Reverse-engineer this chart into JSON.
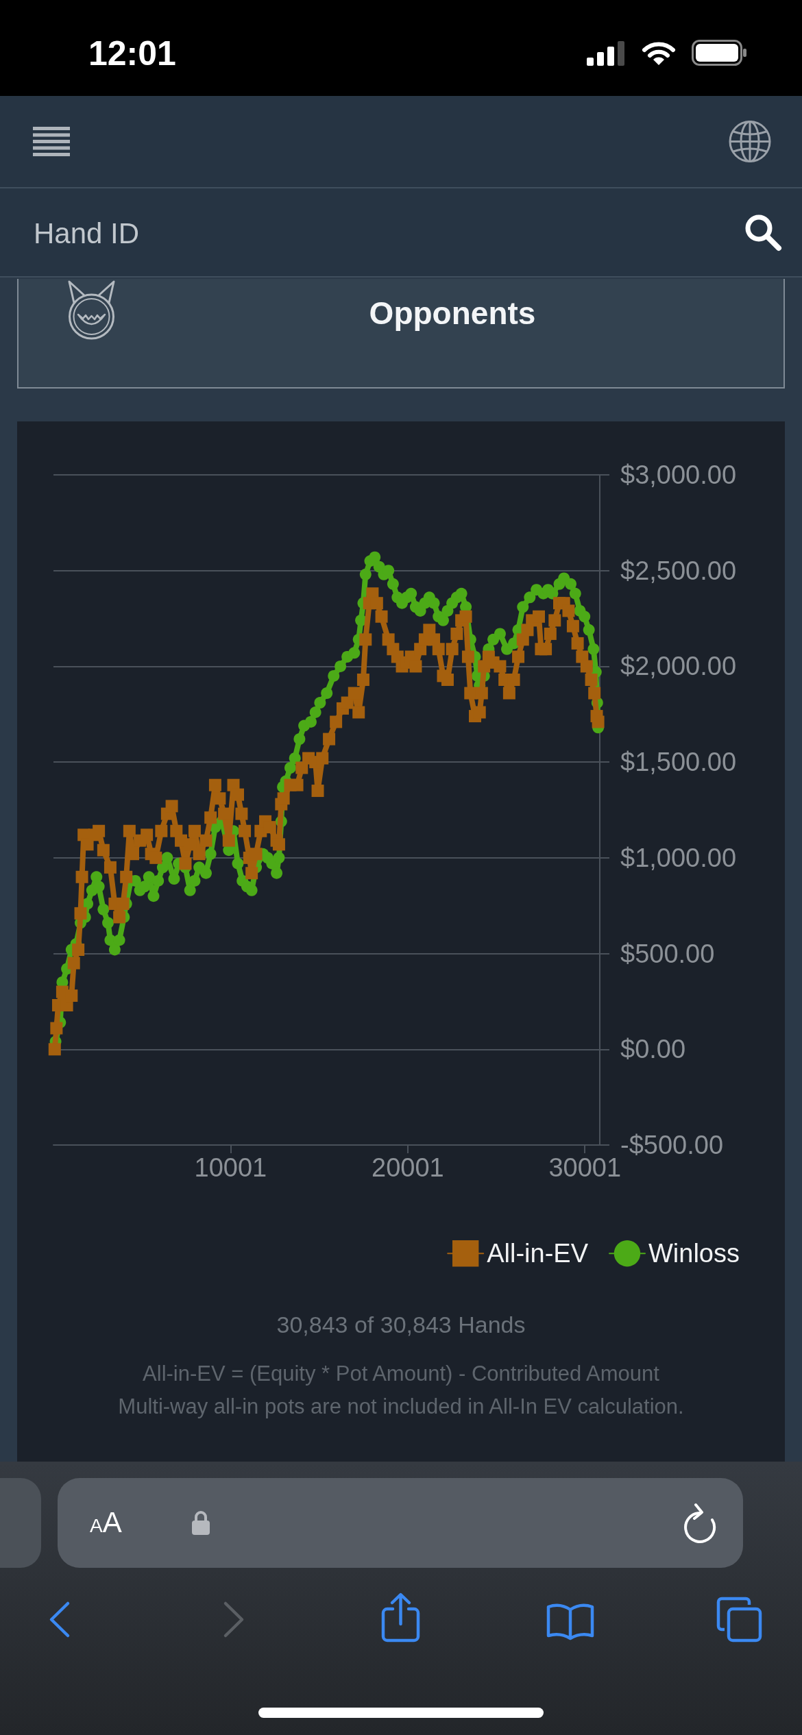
{
  "chart_data": {
    "type": "line",
    "series": [
      {
        "name": "All-in-EV",
        "color": "#a5600e",
        "marker": "square",
        "x": [
          70,
          170,
          270,
          500,
          760,
          1020,
          1150,
          1400,
          1530,
          1610,
          1710,
          1920,
          2310,
          2560,
          2820,
          3210,
          3460,
          3720,
          3930,
          4110,
          4290,
          4490,
          4880,
          5270,
          5520,
          5780,
          6090,
          6420,
          6680,
          6940,
          7200,
          7450,
          7710,
          7970,
          8230,
          8610,
          8870,
          9130,
          9380,
          9640,
          9900,
          10160,
          10410,
          10620,
          10800,
          11060,
          11190,
          11440,
          11700,
          11960,
          12220,
          12600,
          12730,
          12860,
          12990,
          13370,
          13760,
          14020,
          14400,
          14790,
          14920,
          15180,
          15560,
          15950,
          16330,
          16590,
          16980,
          17230,
          17490,
          17620,
          17830,
          18010,
          18260,
          18520,
          18910,
          19170,
          19420,
          19680,
          19940,
          20190,
          20450,
          20710,
          20970,
          21220,
          21480,
          21740,
          22000,
          22250,
          22510,
          22770,
          23030,
          23280,
          23410,
          23540,
          23800,
          24060,
          24180,
          24310,
          24570,
          24830,
          25210,
          25470,
          25730,
          25990,
          26240,
          26500,
          26760,
          27020,
          27400,
          27530,
          27790,
          28050,
          28300,
          28560,
          28820,
          29080,
          29330,
          29590,
          29850,
          30100,
          30360,
          30540,
          30670,
          30750
        ],
        "values": [
          0,
          110,
          230,
          300,
          230,
          280,
          450,
          520,
          710,
          900,
          1120,
          1070,
          1120,
          1140,
          1040,
          950,
          760,
          690,
          760,
          900,
          1140,
          1020,
          1090,
          1120,
          1020,
          1000,
          1140,
          1230,
          1270,
          1140,
          1090,
          970,
          1070,
          1140,
          1020,
          1090,
          1210,
          1380,
          1310,
          1230,
          1090,
          1380,
          1330,
          1230,
          1140,
          1000,
          920,
          1020,
          1140,
          1190,
          1160,
          1090,
          1070,
          1280,
          1310,
          1380,
          1380,
          1470,
          1520,
          1500,
          1350,
          1520,
          1620,
          1710,
          1780,
          1810,
          1860,
          1760,
          1930,
          2140,
          2330,
          2380,
          2330,
          2260,
          2140,
          2090,
          2050,
          2000,
          2020,
          2050,
          2000,
          2090,
          2140,
          2190,
          2140,
          2090,
          1950,
          1930,
          2090,
          2170,
          2240,
          2260,
          2050,
          1860,
          1740,
          1760,
          1860,
          2000,
          2050,
          2020,
          2000,
          1930,
          1860,
          1930,
          2050,
          2140,
          2190,
          2240,
          2260,
          2090,
          2090,
          2170,
          2240,
          2330,
          2330,
          2290,
          2210,
          2120,
          2050,
          2000,
          1930,
          1860,
          1740,
          1710
        ]
      },
      {
        "name": "Winloss",
        "color": "#4caa17",
        "marker": "circle",
        "x": [
          120,
          380,
          500,
          760,
          1020,
          1280,
          1530,
          1790,
          1920,
          2180,
          2430,
          2560,
          2820,
          3080,
          3210,
          3460,
          3720,
          3980,
          4110,
          4360,
          4620,
          4880,
          5140,
          5390,
          5650,
          5910,
          6170,
          6420,
          6810,
          7070,
          7450,
          7710,
          7970,
          8230,
          8610,
          8870,
          9130,
          9510,
          9900,
          10160,
          10410,
          10670,
          10930,
          11190,
          11440,
          11830,
          12090,
          12340,
          12600,
          12730,
          12860,
          12950,
          13120,
          13370,
          13630,
          13890,
          14150,
          14530,
          14790,
          15050,
          15430,
          15820,
          16200,
          16590,
          16980,
          17230,
          17360,
          17490,
          17620,
          17880,
          18140,
          18390,
          18650,
          18910,
          19170,
          19420,
          19680,
          19940,
          20190,
          20450,
          20710,
          20970,
          21220,
          21480,
          21740,
          22000,
          22250,
          22510,
          22770,
          23030,
          23280,
          23540,
          23800,
          23930,
          24060,
          24310,
          24570,
          24830,
          25210,
          25600,
          25990,
          26240,
          26500,
          26890,
          27270,
          27660,
          27920,
          28170,
          28560,
          28820,
          29200,
          29460,
          29720,
          29980,
          30230,
          30490,
          30620,
          30700,
          30750
        ],
        "values": [
          40,
          140,
          350,
          420,
          520,
          550,
          660,
          690,
          760,
          830,
          900,
          850,
          730,
          660,
          570,
          520,
          570,
          690,
          760,
          880,
          880,
          830,
          850,
          900,
          800,
          880,
          950,
          1000,
          890,
          970,
          950,
          830,
          880,
          950,
          920,
          1020,
          1160,
          1190,
          1040,
          1140,
          970,
          880,
          850,
          830,
          950,
          1020,
          1000,
          970,
          920,
          1000,
          1190,
          1370,
          1400,
          1470,
          1520,
          1620,
          1690,
          1710,
          1760,
          1810,
          1860,
          1950,
          2000,
          2050,
          2070,
          2140,
          2240,
          2330,
          2480,
          2550,
          2570,
          2520,
          2480,
          2500,
          2430,
          2360,
          2330,
          2360,
          2380,
          2310,
          2290,
          2330,
          2360,
          2330,
          2260,
          2240,
          2290,
          2330,
          2360,
          2380,
          2310,
          2140,
          2050,
          1950,
          1900,
          1950,
          2090,
          2140,
          2170,
          2090,
          2120,
          2190,
          2310,
          2360,
          2400,
          2380,
          2400,
          2380,
          2430,
          2460,
          2430,
          2380,
          2290,
          2260,
          2190,
          2090,
          1970,
          1810,
          1680
        ]
      }
    ],
    "xlim": [
      1,
      30843
    ],
    "xticks": [
      10001,
      20001,
      30001
    ],
    "ylim": [
      -500,
      3000
    ],
    "yticks": [
      {
        "value": -500,
        "label": "-$500.00"
      },
      {
        "value": 0,
        "label": "$0.00"
      },
      {
        "value": 500,
        "label": "$500.00"
      },
      {
        "value": 1000,
        "label": "$1,000.00"
      },
      {
        "value": 1500,
        "label": "$1,500.00"
      },
      {
        "value": 2000,
        "label": "$2,000.00"
      },
      {
        "value": 2500,
        "label": "$2,500.00"
      },
      {
        "value": 3000,
        "label": "$3,000.00"
      }
    ],
    "grid": "y",
    "legend": "bottom right",
    "annotations": [
      "12:01",
      "Hand ID",
      "Opponents",
      "30,843 of 30,843 Hands",
      "All-in-EV = (Equity * Pot Amount) - Contributed Amount",
      "Multi-way all-in pots are not included in All-In EV calculation.",
      "AA"
    ]
  }
}
